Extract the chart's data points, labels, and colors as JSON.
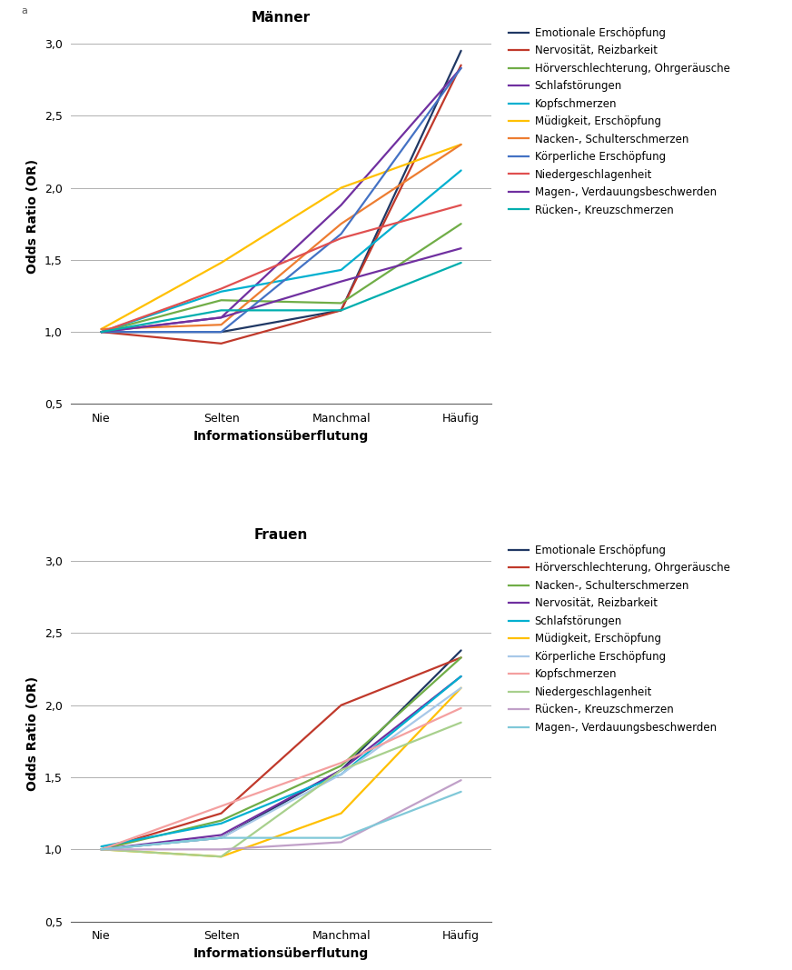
{
  "x_labels": [
    "Nie",
    "Selten",
    "Manchmal",
    "Häufig"
  ],
  "x_positions": [
    0,
    1,
    2,
    3
  ],
  "title_top": "Männer",
  "title_bottom": "Frauen",
  "xlabel": "Informationsüberflutung",
  "ylabel": "Odds Ratio (OR)",
  "ylim": [
    0.5,
    3.1
  ],
  "yticks": [
    0.5,
    1.0,
    1.5,
    2.0,
    2.5,
    3.0
  ],
  "ytick_labels": [
    "0,5",
    "1,0",
    "1,5",
    "2,0",
    "2,5",
    "3,0"
  ],
  "label_a": "a",
  "men_series": [
    {
      "label": "Emotionale Erschöpfung",
      "color": "#203864",
      "values": [
        1.0,
        1.0,
        1.15,
        2.95
      ]
    },
    {
      "label": "Nervosität, Reizbarkeit",
      "color": "#C0392B",
      "values": [
        1.0,
        0.92,
        1.15,
        2.85
      ]
    },
    {
      "label": "Hörverschlechterung, Ohrgeräusche",
      "color": "#70AD47",
      "values": [
        1.0,
        1.22,
        1.2,
        1.75
      ]
    },
    {
      "label": "Schlafstörungen",
      "color": "#7030A0",
      "values": [
        1.0,
        1.1,
        1.88,
        2.83
      ]
    },
    {
      "label": "Kopfschmerzen",
      "color": "#00B0D0",
      "values": [
        1.0,
        1.28,
        1.43,
        2.12
      ]
    },
    {
      "label": "Müdigkeit, Erschöpfung",
      "color": "#FFC000",
      "values": [
        1.02,
        1.48,
        2.0,
        2.3
      ]
    },
    {
      "label": "Nacken-, Schulterschmerzen",
      "color": "#ED7D31",
      "values": [
        1.02,
        1.05,
        1.75,
        2.3
      ]
    },
    {
      "label": "Körperliche Erschöpfung",
      "color": "#4472C4",
      "values": [
        1.0,
        1.0,
        1.68,
        2.83
      ]
    },
    {
      "label": "Niedergeschlagenheit",
      "color": "#E05050",
      "values": [
        1.0,
        1.3,
        1.65,
        1.88
      ]
    },
    {
      "label": "Magen-, Verdauungsbeschwerden",
      "color": "#7030A0",
      "values": [
        1.0,
        1.1,
        1.35,
        1.58
      ]
    },
    {
      "label": "Rücken-, Kreuzschmerzen",
      "color": "#00AEAE",
      "values": [
        1.0,
        1.15,
        1.15,
        1.48
      ]
    }
  ],
  "women_series": [
    {
      "label": "Emotionale Erschöpfung",
      "color": "#203864",
      "values": [
        1.0,
        1.08,
        1.55,
        2.38
      ]
    },
    {
      "label": "Hörverschlechterung, Ohrgeräusche",
      "color": "#C0392B",
      "values": [
        1.0,
        1.25,
        2.0,
        2.33
      ]
    },
    {
      "label": "Nacken-, Schulterschmerzen",
      "color": "#70AD47",
      "values": [
        1.0,
        1.2,
        1.58,
        2.33
      ]
    },
    {
      "label": "Nervosität, Reizbarkeit",
      "color": "#7030A0",
      "values": [
        1.0,
        1.1,
        1.55,
        2.2
      ]
    },
    {
      "label": "Schlafstörungen",
      "color": "#00B0D0",
      "values": [
        1.02,
        1.18,
        1.52,
        2.2
      ]
    },
    {
      "label": "Müdigkeit, Erschöpfung",
      "color": "#FFC000",
      "values": [
        1.0,
        0.95,
        1.25,
        2.12
      ]
    },
    {
      "label": "Körperliche Erschöpfung",
      "color": "#A8C8E8",
      "values": [
        1.0,
        1.08,
        1.52,
        2.12
      ]
    },
    {
      "label": "Kopfschmerzen",
      "color": "#F4A0A0",
      "values": [
        1.0,
        1.3,
        1.6,
        1.98
      ]
    },
    {
      "label": "Niedergeschlagenheit",
      "color": "#A8D08D",
      "values": [
        1.0,
        0.95,
        1.55,
        1.88
      ]
    },
    {
      "label": "Rücken-, Kreuzschmerzen",
      "color": "#C0A0C8",
      "values": [
        1.0,
        1.0,
        1.05,
        1.48
      ]
    },
    {
      "label": "Magen-, Verdauungsbeschwerden",
      "color": "#80C8D8",
      "values": [
        1.0,
        1.08,
        1.08,
        1.4
      ]
    }
  ],
  "background_color": "#ffffff",
  "grid_color": "#b0b0b0",
  "line_width": 1.6,
  "font_size_title": 11,
  "font_size_axis_label": 10,
  "font_size_tick": 9,
  "font_size_legend": 8.5
}
